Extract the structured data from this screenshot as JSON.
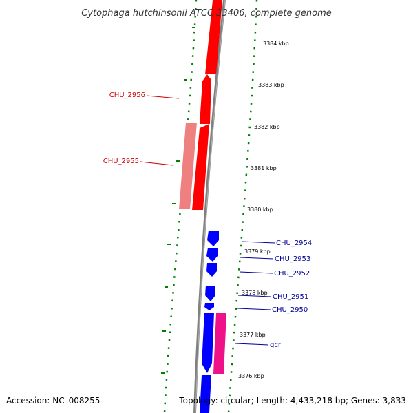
{
  "title": "Cytophaga hutchinsonii ATCC 33406, complete genome",
  "footer": {
    "accession": "Accession: NC_008255",
    "summary": "Topology: circular; Length: 4,433,218 bp; Genes: 3,833"
  },
  "colors": {
    "forward_gene": "#ff0000",
    "forward_gene_light": "#ee8080",
    "reverse_gene": "#0000ff",
    "reverse_gene_light": "#8080ff",
    "rna_gene": "#ee1188",
    "backbone": "#808080",
    "tick_marks": "#008000",
    "forward_label": "#cc0000",
    "reverse_label": "#000099"
  },
  "scale": {
    "ticks": [
      {
        "kbp": 3384,
        "label": "3384 kbp"
      },
      {
        "kbp": 3383,
        "label": "3383 kbp"
      },
      {
        "kbp": 3382,
        "label": "3382 kbp"
      },
      {
        "kbp": 3381,
        "label": "3381 kbp"
      },
      {
        "kbp": 3380,
        "label": "3380 kbp"
      },
      {
        "kbp": 3379,
        "label": "3379 kbp"
      },
      {
        "kbp": 3378,
        "label": "3378 kbp"
      },
      {
        "kbp": 3377,
        "label": "3377 kbp"
      },
      {
        "kbp": 3376,
        "label": "3376 kbp"
      }
    ]
  },
  "gene_labels": [
    {
      "text": "CHU_2956",
      "strand": "forward"
    },
    {
      "text": "CHU_2955",
      "strand": "forward"
    },
    {
      "text": "CHU_2954",
      "strand": "reverse"
    },
    {
      "text": "CHU_2953",
      "strand": "reverse"
    },
    {
      "text": "CHU_2952",
      "strand": "reverse"
    },
    {
      "text": "CHU_2951",
      "strand": "reverse"
    },
    {
      "text": "CHU_2950",
      "strand": "reverse"
    },
    {
      "text": "gcr",
      "strand": "reverse"
    }
  ]
}
